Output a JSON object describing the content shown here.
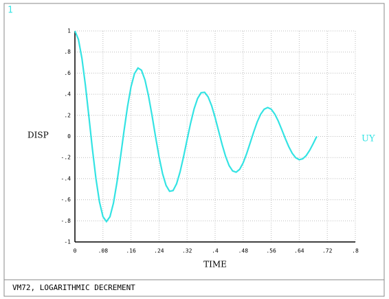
{
  "chart_data": {
    "type": "line",
    "window_number": "1",
    "title": "VM72, LOGARITHMIC DECREMENT",
    "xlabel": "TIME",
    "ylabel": "DISP",
    "xlim": [
      0,
      0.8
    ],
    "ylim": [
      -1,
      1
    ],
    "xticks": [
      0,
      {
        "value": 0.08,
        "label": ".08"
      },
      {
        "value": 0.16,
        "label": ".16"
      },
      {
        "value": 0.24,
        "label": ".24"
      },
      {
        "value": 0.32,
        "label": ".32"
      },
      {
        "value": 0.4,
        "label": ".4"
      },
      {
        "value": 0.48,
        "label": ".48"
      },
      {
        "value": 0.56,
        "label": ".56"
      },
      {
        "value": 0.64,
        "label": ".64"
      },
      {
        "value": 0.72,
        "label": ".72"
      },
      {
        "value": 0.8,
        "label": ".8"
      }
    ],
    "yticks": [
      -1,
      {
        "value": -0.8,
        "label": "-.8"
      },
      {
        "value": -0.6,
        "label": "-.6"
      },
      {
        "value": -0.4,
        "label": "-.4"
      },
      {
        "value": -0.2,
        "label": "-.2"
      },
      0,
      {
        "value": 0.2,
        "label": ".2"
      },
      {
        "value": 0.4,
        "label": ".4"
      },
      {
        "value": 0.6,
        "label": ".6"
      },
      {
        "value": 0.8,
        "label": ".8"
      },
      1
    ],
    "grid": true,
    "x": [
      0,
      0.01,
      0.02,
      0.03,
      0.04,
      0.05,
      0.06,
      0.07,
      0.08,
      0.09,
      0.1,
      0.11,
      0.12,
      0.13,
      0.14,
      0.15,
      0.16,
      0.17,
      0.18,
      0.19,
      0.2,
      0.21,
      0.22,
      0.23,
      0.24,
      0.25,
      0.26,
      0.27,
      0.28,
      0.29,
      0.3,
      0.31,
      0.32,
      0.33,
      0.34,
      0.35,
      0.36,
      0.37,
      0.38,
      0.39,
      0.4,
      0.41,
      0.42,
      0.43,
      0.44,
      0.45,
      0.46,
      0.47,
      0.48,
      0.49,
      0.5,
      0.51,
      0.52,
      0.53,
      0.54,
      0.55,
      0.56,
      0.57,
      0.58,
      0.59,
      0.6,
      0.61,
      0.62,
      0.63,
      0.64,
      0.65,
      0.66,
      0.67,
      0.68,
      0.69
    ],
    "series": [
      {
        "name": "UY",
        "color": "#33e3e3",
        "values": [
          1,
          0.92,
          0.74,
          0.484,
          0.185,
          -0.122,
          -0.4,
          -0.62,
          -0.76,
          -0.807,
          -0.761,
          -0.631,
          -0.434,
          -0.198,
          0.05,
          0.281,
          0.47,
          0.596,
          0.649,
          0.627,
          0.534,
          0.384,
          0.199,
          -0.001,
          -0.192,
          -0.352,
          -0.464,
          -0.52,
          -0.513,
          -0.449,
          -0.336,
          -0.191,
          -0.031,
          0.125,
          0.261,
          0.36,
          0.414,
          0.418,
          0.375,
          0.292,
          0.179,
          0.051,
          -0.077,
          -0.19,
          -0.277,
          -0.327,
          -0.339,
          -0.312,
          -0.25,
          -0.163,
          -0.061,
          0.042,
          0.137,
          0.211,
          0.258,
          0.274,
          0.258,
          0.213,
          0.147,
          0.066,
          -0.018,
          -0.096,
          -0.16,
          -0.202,
          -0.22,
          -0.212,
          -0.181,
          -0.13,
          -0.067,
          0.001
        ]
      }
    ]
  }
}
